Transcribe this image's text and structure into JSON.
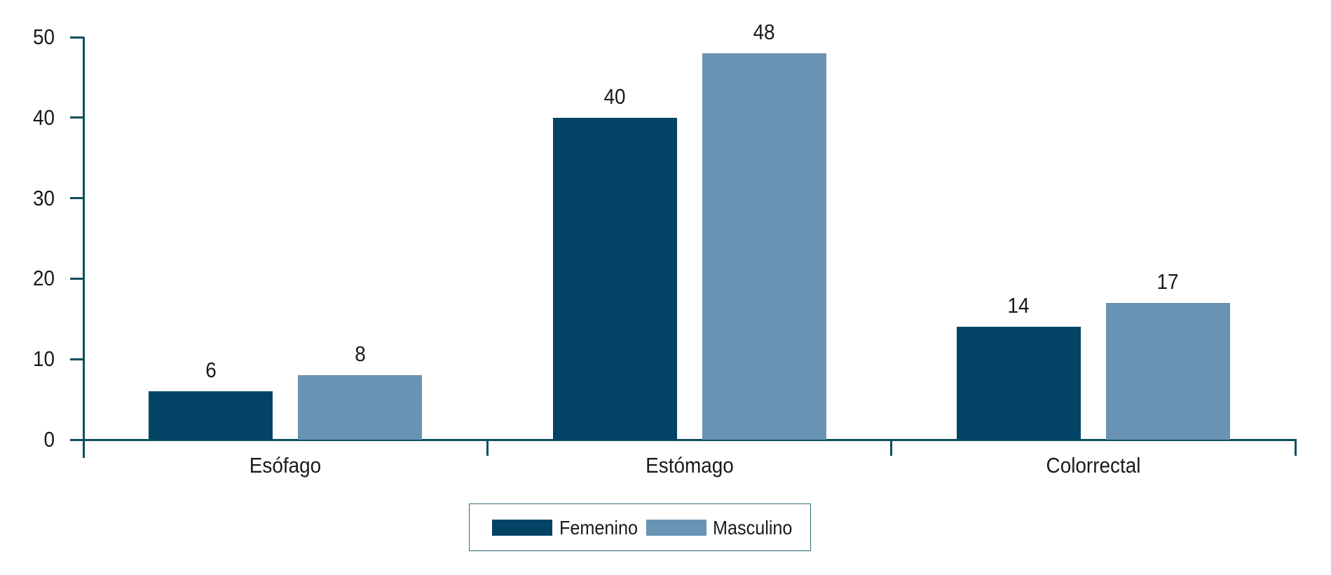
{
  "chart_data": {
    "type": "bar",
    "title": "",
    "xlabel": "",
    "ylabel": "",
    "ylim": [
      0,
      50
    ],
    "yticks": [
      0,
      10,
      20,
      30,
      40,
      50
    ],
    "grid": false,
    "legend_position": "bottom-center",
    "categories": [
      "Esófago",
      "Estómago",
      "Colorrectal"
    ],
    "series": [
      {
        "name": "Femenino",
        "color": "#034466",
        "values": [
          6,
          40,
          14
        ]
      },
      {
        "name": "Masculino",
        "color": "#6893b3",
        "values": [
          8,
          48,
          17
        ]
      }
    ],
    "data_labels": [
      [
        "6",
        "40",
        "14"
      ],
      [
        "8",
        "48",
        "17"
      ]
    ]
  },
  "colors": {
    "axis": "#0b4f5e",
    "text": "#1a1a1a"
  }
}
